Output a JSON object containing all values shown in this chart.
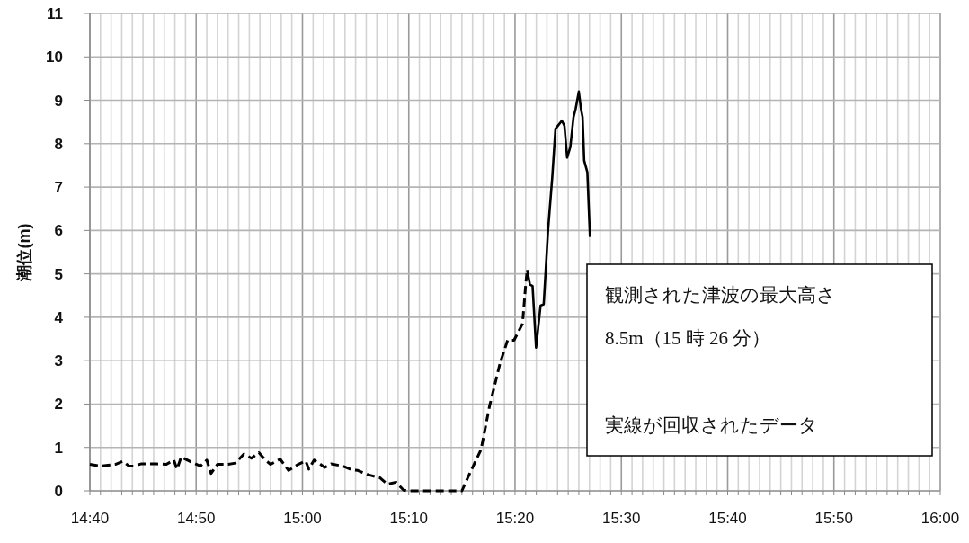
{
  "chart_data": {
    "type": "line",
    "ylabel": "潮位(m)",
    "xlim": [
      14.6667,
      16
    ],
    "ylim": [
      0,
      11
    ],
    "yticks": [
      0,
      1,
      2,
      3,
      4,
      5,
      6,
      7,
      8,
      9,
      10,
      11
    ],
    "xticks": [
      {
        "value": 14.6667,
        "label": "14:40"
      },
      {
        "value": 14.6833,
        "label": null
      },
      {
        "value": 14.7,
        "label": null
      },
      {
        "value": 14.7167,
        "label": null
      },
      {
        "value": 14.7333,
        "label": null
      },
      {
        "value": 14.75,
        "label": null
      },
      {
        "value": 14.7667,
        "label": null
      },
      {
        "value": 14.7833,
        "label": null
      },
      {
        "value": 14.8,
        "label": null
      },
      {
        "value": 14.8167,
        "label": null
      },
      {
        "value": 14.8333,
        "label": "14:50"
      },
      {
        "value": 14.85,
        "label": null
      },
      {
        "value": 14.8667,
        "label": null
      },
      {
        "value": 14.8833,
        "label": null
      },
      {
        "value": 14.9,
        "label": null
      },
      {
        "value": 14.9167,
        "label": null
      },
      {
        "value": 14.9333,
        "label": null
      },
      {
        "value": 14.95,
        "label": null
      },
      {
        "value": 14.9667,
        "label": null
      },
      {
        "value": 14.9833,
        "label": null
      },
      {
        "value": 15,
        "label": "15:00"
      },
      {
        "value": 15.0167,
        "label": null
      },
      {
        "value": 15.0333,
        "label": null
      },
      {
        "value": 15.05,
        "label": null
      },
      {
        "value": 15.0667,
        "label": null
      },
      {
        "value": 15.0833,
        "label": null
      },
      {
        "value": 15.1,
        "label": null
      },
      {
        "value": 15.1167,
        "label": null
      },
      {
        "value": 15.1333,
        "label": null
      },
      {
        "value": 15.15,
        "label": null
      },
      {
        "value": 15.1667,
        "label": "15:10"
      },
      {
        "value": 15.1833,
        "label": null
      },
      {
        "value": 15.2,
        "label": null
      },
      {
        "value": 15.2167,
        "label": null
      },
      {
        "value": 15.2333,
        "label": null
      },
      {
        "value": 15.25,
        "label": null
      },
      {
        "value": 15.2667,
        "label": null
      },
      {
        "value": 15.2833,
        "label": null
      },
      {
        "value": 15.3,
        "label": null
      },
      {
        "value": 15.3167,
        "label": null
      },
      {
        "value": 15.3333,
        "label": "15:20"
      },
      {
        "value": 15.35,
        "label": null
      },
      {
        "value": 15.3667,
        "label": null
      },
      {
        "value": 15.3833,
        "label": null
      },
      {
        "value": 15.4,
        "label": null
      },
      {
        "value": 15.4167,
        "label": null
      },
      {
        "value": 15.4333,
        "label": null
      },
      {
        "value": 15.45,
        "label": null
      },
      {
        "value": 15.4667,
        "label": null
      },
      {
        "value": 15.4833,
        "label": null
      },
      {
        "value": 15.5,
        "label": "15:30"
      },
      {
        "value": 15.5167,
        "label": null
      },
      {
        "value": 15.5333,
        "label": null
      },
      {
        "value": 15.55,
        "label": null
      },
      {
        "value": 15.5667,
        "label": null
      },
      {
        "value": 15.5833,
        "label": null
      },
      {
        "value": 15.6,
        "label": null
      },
      {
        "value": 15.6167,
        "label": null
      },
      {
        "value": 15.6333,
        "label": null
      },
      {
        "value": 15.65,
        "label": null
      },
      {
        "value": 15.6667,
        "label": "15:40"
      },
      {
        "value": 15.6833,
        "label": null
      },
      {
        "value": 15.7,
        "label": null
      },
      {
        "value": 15.7167,
        "label": null
      },
      {
        "value": 15.7333,
        "label": null
      },
      {
        "value": 15.75,
        "label": null
      },
      {
        "value": 15.7667,
        "label": null
      },
      {
        "value": 15.7833,
        "label": null
      },
      {
        "value": 15.8,
        "label": null
      },
      {
        "value": 15.8167,
        "label": null
      },
      {
        "value": 15.8333,
        "label": "15:50"
      },
      {
        "value": 15.85,
        "label": null
      },
      {
        "value": 15.8667,
        "label": null
      },
      {
        "value": 15.8833,
        "label": null
      },
      {
        "value": 15.9,
        "label": null
      },
      {
        "value": 15.9167,
        "label": null
      },
      {
        "value": 15.9333,
        "label": null
      },
      {
        "value": 15.95,
        "label": null
      },
      {
        "value": 15.9667,
        "label": null
      },
      {
        "value": 15.9833,
        "label": null
      },
      {
        "value": 16,
        "label": "16:00"
      }
    ],
    "grid": true,
    "series": [
      {
        "color": "#000000",
        "line_style": "dashed",
        "x": [
          14.6667,
          14.6833,
          14.695,
          14.7067,
          14.7183,
          14.7283,
          14.735,
          14.7467,
          14.76,
          14.7717,
          14.7867,
          14.7983,
          14.8033,
          14.81,
          14.8233,
          14.84,
          14.85,
          14.8567,
          14.8667,
          14.8833,
          14.895,
          14.9083,
          14.92,
          14.9317,
          14.9417,
          14.95,
          14.965,
          14.9783,
          14.9933,
          15.005,
          15.01,
          15.0183,
          15.035,
          15.045,
          15.0633,
          15.0783,
          15.0867,
          15.1033,
          15.1217,
          15.1333,
          15.1467,
          15.1583,
          15.1633,
          15.25,
          15.26,
          15.28,
          15.2933,
          15.31,
          15.3217,
          15.3317,
          15.345,
          15.35,
          15.3523
        ],
        "values": [
          0.61,
          0.57,
          0.59,
          0.61,
          0.68,
          0.57,
          0.57,
          0.62,
          0.62,
          0.62,
          0.61,
          0.71,
          0.5,
          0.78,
          0.68,
          0.57,
          0.71,
          0.4,
          0.61,
          0.61,
          0.64,
          0.85,
          0.75,
          0.88,
          0.71,
          0.61,
          0.73,
          0.47,
          0.61,
          0.69,
          0.5,
          0.71,
          0.54,
          0.62,
          0.57,
          0.48,
          0.47,
          0.37,
          0.3,
          0.15,
          0.2,
          0.02,
          0,
          0,
          0.33,
          0.95,
          1.95,
          2.95,
          3.47,
          3.47,
          3.85,
          4.75,
          5.09
        ]
      },
      {
        "color": "#000000",
        "line_style": "solid",
        "x": [
          15.3523,
          15.3567,
          15.3608,
          15.3663,
          15.3733,
          15.3783,
          15.385,
          15.3917,
          15.3967,
          15.4067,
          15.4108,
          15.415,
          15.42,
          15.425,
          15.4283,
          15.4333,
          15.4367,
          15.4392,
          15.4417,
          15.4467,
          15.4508
        ],
        "values": [
          5.09,
          4.75,
          4.72,
          3.3,
          4.27,
          4.3,
          5.99,
          7.23,
          8.34,
          8.53,
          8.41,
          7.68,
          7.92,
          8.61,
          8.8,
          9.2,
          8.8,
          8.61,
          7.61,
          7.34,
          5.85
        ]
      }
    ],
    "annotations": [
      "観測された津波の最大高さ",
      "8.5m（15 時 26 分）",
      "実線が回収されたデータ"
    ]
  }
}
